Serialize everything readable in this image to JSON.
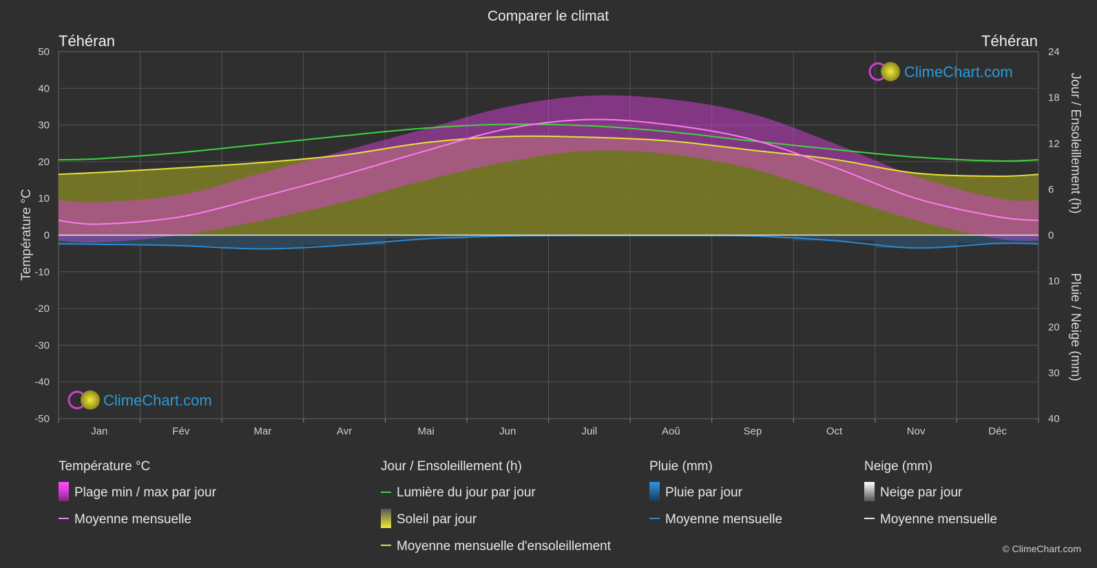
{
  "page": {
    "title": "Comparer le climat",
    "city_left": "Téhéran",
    "city_right": "Téhéran",
    "brand": "ClimeChart.com",
    "copyright": "© ClimeChart.com"
  },
  "axes": {
    "left_label": "Température °C",
    "right_top_label": "Jour / Ensoleillement (h)",
    "right_bottom_label": "Pluie / Neige (mm)",
    "left_ticks": [
      "50",
      "40",
      "30",
      "20",
      "10",
      "0",
      "-10",
      "-20",
      "-30",
      "-40",
      "-50"
    ],
    "right_top_ticks": [
      "24",
      "18",
      "12",
      "6",
      "0"
    ],
    "right_bottom_ticks": [
      "10",
      "20",
      "30",
      "40"
    ]
  },
  "legend": {
    "temperature": {
      "head": "Température °C",
      "range": "Plage min / max par jour",
      "mean": "Moyenne mensuelle"
    },
    "sun": {
      "head": "Jour / Ensoleillement (h)",
      "daylight": "Lumière du jour par jour",
      "sunshine": "Soleil par jour",
      "sun_mean": "Moyenne mensuelle d'ensoleillement"
    },
    "rain": {
      "head": "Pluie (mm)",
      "daily": "Pluie par jour",
      "mean": "Moyenne mensuelle"
    },
    "snow": {
      "head": "Neige (mm)",
      "daily": "Neige par jour",
      "mean": "Moyenne mensuelle"
    }
  },
  "colors": {
    "background": "#2f2f2f",
    "temp_range": "#d63fd6",
    "temp_mean": "#ff7cf0",
    "daylight": "#3fd43f",
    "sunshine_fill": "#7f7f26",
    "sunshine_mean": "#e8e23a",
    "rain": "#2a8ad4",
    "snow": "#d0d0d0"
  },
  "chart_data": {
    "type": "area",
    "categories": [
      "Jan",
      "Fév",
      "Mar",
      "Avr",
      "Mai",
      "Jun",
      "Juil",
      "Aoû",
      "Sep",
      "Oct",
      "Nov",
      "Déc"
    ],
    "temp_ylim": [
      -50,
      50
    ],
    "sun_ylim_h": [
      0,
      24
    ],
    "precip_ylim_mm": [
      0,
      40
    ],
    "series": [
      {
        "name": "Moyenne mensuelle",
        "unit": "°C",
        "values": [
          3,
          5,
          10.5,
          16.5,
          23,
          29,
          31.5,
          30,
          26,
          18.5,
          10,
          5
        ]
      },
      {
        "name": "Plage min / max par jour",
        "unit": "°C",
        "min": [
          -2,
          0,
          4,
          9,
          15,
          20,
          23,
          22,
          18,
          11,
          4,
          -1
        ],
        "max": [
          9,
          11,
          17,
          23,
          29,
          35,
          38,
          37,
          33,
          25,
          16,
          10
        ]
      },
      {
        "name": "Lumière du jour par jour",
        "unit": "h",
        "values": [
          10,
          10.8,
          11.9,
          13.0,
          14.0,
          14.5,
          14.3,
          13.5,
          12.3,
          11.2,
          10.2,
          9.7
        ]
      },
      {
        "name": "Moyenne mensuelle d'ensoleillement",
        "unit": "h",
        "values": [
          8.2,
          8.8,
          9.5,
          10.5,
          12.1,
          12.9,
          12.8,
          12.3,
          11.1,
          9.9,
          8.1,
          7.7
        ]
      },
      {
        "name": "Pluie Moyenne mensuelle",
        "unit": "mm",
        "values": [
          2.0,
          2.3,
          3.0,
          2.2,
          0.8,
          0.2,
          0.1,
          0.1,
          0.2,
          1.2,
          2.8,
          1.8
        ]
      }
    ]
  }
}
